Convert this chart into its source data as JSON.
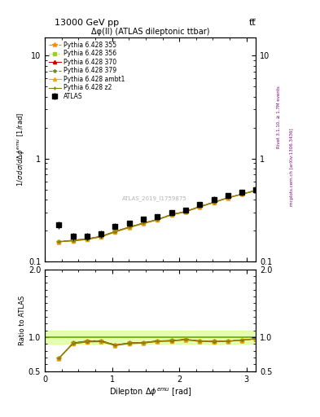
{
  "title_top": "13000 GeV pp",
  "title_right": "tt̅",
  "plot_title": "Δφ(ll) (ATLAS dileptonic ttbar)",
  "ylabel_main": "1 / σ dσ / d Δ φ^{emu} [1/rad]",
  "ylabel_ratio": "Ratio to ATLAS",
  "xlabel": "Dilepton Δ φ^{emu} [rad]",
  "watermark": "ATLAS_2019_I1759875",
  "right_label1": "Rivet 3.1.10, ≥ 1.7M events",
  "right_label2": "mcplots.cern.ch [arXiv:1306.3436]",
  "x_data": [
    0.2094,
    0.4189,
    0.6283,
    0.8378,
    1.0472,
    1.2566,
    1.4661,
    1.6755,
    1.885,
    2.0944,
    2.3038,
    2.5133,
    2.7227,
    2.9322,
    3.1416
  ],
  "atlas_y": [
    0.225,
    0.175,
    0.175,
    0.185,
    0.22,
    0.235,
    0.255,
    0.27,
    0.3,
    0.315,
    0.36,
    0.4,
    0.44,
    0.47,
    0.5
  ],
  "atlas_yerr": [
    0.02,
    0.015,
    0.015,
    0.015,
    0.015,
    0.015,
    0.015,
    0.015,
    0.015,
    0.02,
    0.02,
    0.025,
    0.025,
    0.03,
    0.03
  ],
  "py355_y": [
    0.155,
    0.16,
    0.165,
    0.175,
    0.195,
    0.215,
    0.235,
    0.255,
    0.285,
    0.305,
    0.34,
    0.375,
    0.415,
    0.45,
    0.485
  ],
  "py356_y": [
    0.155,
    0.16,
    0.165,
    0.175,
    0.195,
    0.215,
    0.235,
    0.255,
    0.285,
    0.305,
    0.34,
    0.375,
    0.415,
    0.45,
    0.485
  ],
  "py370_y": [
    0.155,
    0.16,
    0.165,
    0.175,
    0.195,
    0.215,
    0.235,
    0.255,
    0.285,
    0.305,
    0.34,
    0.375,
    0.415,
    0.45,
    0.49
  ],
  "py379_y": [
    0.155,
    0.16,
    0.165,
    0.175,
    0.195,
    0.215,
    0.235,
    0.255,
    0.285,
    0.305,
    0.34,
    0.375,
    0.415,
    0.45,
    0.49
  ],
  "pyambt1_y": [
    0.155,
    0.158,
    0.163,
    0.173,
    0.193,
    0.213,
    0.233,
    0.253,
    0.283,
    0.303,
    0.338,
    0.373,
    0.413,
    0.45,
    0.488
  ],
  "pyz2_y": [
    0.155,
    0.158,
    0.163,
    0.173,
    0.193,
    0.213,
    0.233,
    0.253,
    0.283,
    0.303,
    0.338,
    0.373,
    0.413,
    0.45,
    0.488
  ],
  "colors": {
    "atlas": "#000000",
    "py355": "#ff8c00",
    "py356": "#9acd32",
    "py370": "#c00000",
    "py379": "#6b8e23",
    "pyambt1": "#ffa500",
    "pyz2": "#808000"
  },
  "legend_labels": {
    "atlas": "ATLAS",
    "py355": "Pythia 6.428 355",
    "py356": "Pythia 6.428 356",
    "py370": "Pythia 6.428 370",
    "py379": "Pythia 6.428 379",
    "pyambt1": "Pythia 6.428 ambt1",
    "pyz2": "Pythia 6.428 z2"
  },
  "xlim": [
    0.0,
    3.14159
  ],
  "ylim_main_log": [
    0.1,
    15.0
  ],
  "ylim_ratio": [
    0.5,
    2.0
  ]
}
